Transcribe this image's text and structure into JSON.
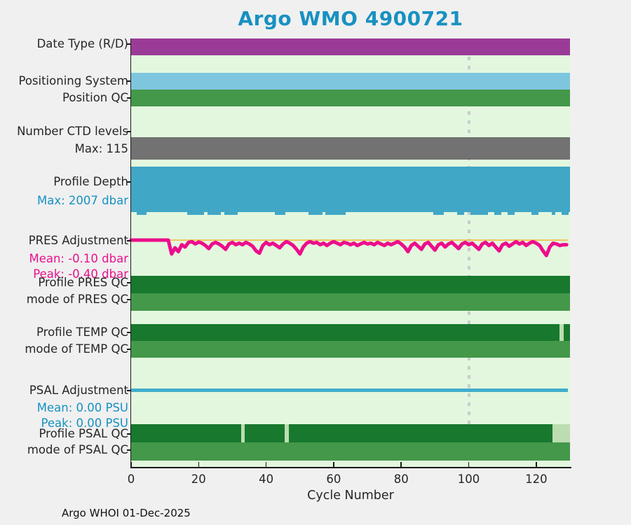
{
  "title": "Argo WMO 4900721",
  "footer": "Argo WHOI 01-Dec-2025",
  "colors": {
    "title_text": "#1791C1",
    "label_text": "#262626",
    "teal_text": "#1791C1",
    "magenta_text": "#E8118C",
    "figure_bg": "#F0F0F0",
    "plot_bg": "#E3F7DE",
    "purple": "#9B3B98",
    "lightblue": "#7EC6DE",
    "midgreen": "#44984A",
    "gray": "#717271",
    "depthblue": "#41A7C7",
    "darkgreen": "#17782E",
    "palegreen": "#BCDDB0",
    "yellow_line": "#EFC45E",
    "magenta_line": "#EC0D8C",
    "blue_line": "#41AECD",
    "dashed_line": "#CBCBCD",
    "axis": "#1A1A1A"
  },
  "left_labels": [
    {
      "id": "date-type",
      "text": "Date Type (R/D)",
      "color_key": "label_text"
    },
    {
      "id": "positioning-system",
      "text": "Positioning System",
      "color_key": "label_text"
    },
    {
      "id": "position-qc",
      "text": "Position QC",
      "color_key": "label_text"
    },
    {
      "id": "num-ctd-levels",
      "text": "Number CTD levels",
      "color_key": "label_text"
    },
    {
      "id": "num-ctd-max",
      "text": "Max: 115",
      "color_key": "label_text"
    },
    {
      "id": "profile-depth",
      "text": "Profile Depth",
      "color_key": "label_text"
    },
    {
      "id": "profile-depth-max",
      "text": "Max: 2007 dbar",
      "color_key": "teal_text"
    },
    {
      "id": "pres-adjustment",
      "text": "PRES Adjustment",
      "color_key": "label_text"
    },
    {
      "id": "pres-mean",
      "text": "Mean: -0.10 dbar",
      "color_key": "magenta_text"
    },
    {
      "id": "pres-peak",
      "text": "Peak: -0.40 dbar",
      "color_key": "magenta_text"
    },
    {
      "id": "profile-pres-qc",
      "text": "Profile PRES QC",
      "color_key": "label_text"
    },
    {
      "id": "mode-pres-qc",
      "text": "mode of PRES QC",
      "color_key": "label_text"
    },
    {
      "id": "profile-temp-qc",
      "text": "Profile TEMP QC",
      "color_key": "label_text"
    },
    {
      "id": "mode-temp-qc",
      "text": "mode of TEMP QC",
      "color_key": "label_text"
    },
    {
      "id": "psal-adjustment",
      "text": "PSAL Adjustment",
      "color_key": "label_text"
    },
    {
      "id": "psal-mean",
      "text": "Mean: 0.00 PSU",
      "color_key": "teal_text"
    },
    {
      "id": "psal-peak",
      "text": "Peak: 0.00 PSU",
      "color_key": "teal_text"
    },
    {
      "id": "profile-psal-qc",
      "text": "Profile PSAL QC",
      "color_key": "label_text"
    },
    {
      "id": "mode-psal-qc",
      "text": "mode of PSAL QC",
      "color_key": "label_text"
    }
  ],
  "chart_data": {
    "type": "status-band-timeseries",
    "title": "Argo WMO 4900721",
    "xlabel": "Cycle Number",
    "x_ticks": [
      0,
      20,
      40,
      60,
      80,
      100,
      120
    ],
    "x_range": [
      0,
      130
    ],
    "reference_dashed_line_x": 100,
    "grid": false,
    "band_rows": [
      {
        "id": "date-type",
        "label": "Date Type (R/D)",
        "segments": [
          [
            0,
            130,
            "purple"
          ]
        ]
      },
      {
        "id": "positioning-system",
        "label": "Positioning System",
        "segments": [
          [
            0,
            130,
            "lightblue"
          ]
        ]
      },
      {
        "id": "position-qc",
        "label": "Position QC",
        "segments": [
          [
            0,
            130,
            "midgreen"
          ]
        ]
      },
      {
        "id": "num-ctd-levels",
        "label": "Number CTD levels",
        "max_levels": 115,
        "segments": [
          [
            0,
            130,
            "gray"
          ]
        ]
      },
      {
        "id": "profile-depth",
        "label": "Profile Depth",
        "max_depth_dbar": 2007,
        "segments": [
          [
            0,
            130,
            "depthblue"
          ]
        ],
        "deeper_tick_cycles": [
          2,
          3,
          4,
          17,
          18,
          19,
          20,
          21,
          23,
          24,
          25,
          26,
          28,
          29,
          30,
          31,
          43,
          44,
          45,
          53,
          54,
          55,
          56,
          58,
          59,
          60,
          61,
          62,
          63,
          90,
          91,
          92,
          97,
          98,
          101,
          102,
          103,
          104,
          105,
          108,
          109,
          112,
          113,
          119,
          120,
          125,
          128,
          129
        ]
      },
      {
        "id": "profile-pres-qc",
        "label": "Profile PRES QC",
        "segments": [
          [
            0,
            130,
            "darkgreen"
          ]
        ]
      },
      {
        "id": "mode-pres-qc",
        "label": "mode of PRES QC",
        "segments": [
          [
            0,
            130,
            "midgreen"
          ]
        ]
      },
      {
        "id": "profile-temp-qc",
        "label": "Profile TEMP QC",
        "segments": [
          [
            0,
            126.9,
            "darkgreen"
          ],
          [
            126.9,
            128.1,
            "palegreen"
          ],
          [
            128.1,
            130,
            "darkgreen"
          ]
        ]
      },
      {
        "id": "mode-temp-qc",
        "label": "mode of TEMP QC",
        "segments": [
          [
            0,
            130,
            "midgreen"
          ]
        ]
      },
      {
        "id": "profile-psal-qc",
        "label": "Profile PSAL QC",
        "segments": [
          [
            0,
            32.6,
            "darkgreen"
          ],
          [
            32.6,
            33.6,
            "palegreen"
          ],
          [
            33.6,
            45.5,
            "darkgreen"
          ],
          [
            45.5,
            46.7,
            "palegreen"
          ],
          [
            46.7,
            124.8,
            "darkgreen"
          ],
          [
            124.8,
            130,
            "palegreen"
          ]
        ]
      },
      {
        "id": "mode-psal-qc",
        "label": "mode of PSAL QC",
        "segments": [
          [
            0,
            130,
            "midgreen"
          ]
        ]
      }
    ],
    "pres_adjustment": {
      "label": "PRES Adjustment",
      "units": "dbar",
      "mean": -0.1,
      "peak": -0.4,
      "zero_reference_line": true,
      "values_by_cycle": [
        0,
        0,
        0,
        0,
        0,
        0,
        0,
        0,
        0,
        0,
        0,
        0,
        -0.36,
        -0.2,
        -0.3,
        -0.12,
        -0.18,
        -0.06,
        -0.04,
        -0.1,
        -0.05,
        -0.08,
        -0.14,
        -0.22,
        -0.1,
        -0.06,
        -0.1,
        -0.16,
        -0.24,
        -0.1,
        -0.06,
        -0.12,
        -0.08,
        -0.12,
        -0.06,
        -0.1,
        -0.16,
        -0.28,
        -0.34,
        -0.14,
        -0.06,
        -0.12,
        -0.08,
        -0.14,
        -0.2,
        -0.1,
        -0.04,
        -0.08,
        -0.14,
        -0.24,
        -0.36,
        -0.18,
        -0.08,
        -0.04,
        -0.08,
        -0.06,
        -0.12,
        -0.08,
        -0.14,
        -0.08,
        -0.04,
        -0.08,
        -0.12,
        -0.06,
        -0.08,
        -0.12,
        -0.08,
        -0.14,
        -0.1,
        -0.06,
        -0.1,
        -0.08,
        -0.12,
        -0.06,
        -0.1,
        -0.14,
        -0.08,
        -0.12,
        -0.08,
        -0.04,
        -0.1,
        -0.18,
        -0.3,
        -0.14,
        -0.08,
        -0.16,
        -0.24,
        -0.1,
        -0.06,
        -0.16,
        -0.26,
        -0.12,
        -0.08,
        -0.18,
        -0.1,
        -0.06,
        -0.14,
        -0.22,
        -0.1,
        -0.06,
        -0.12,
        -0.08,
        -0.16,
        -0.24,
        -0.1,
        -0.06,
        -0.14,
        -0.08,
        -0.18,
        -0.28,
        -0.12,
        -0.08,
        -0.16,
        -0.1,
        -0.04,
        -0.1,
        -0.06,
        -0.14,
        -0.08,
        -0.04,
        -0.08,
        -0.14,
        -0.28,
        -0.4,
        -0.18,
        -0.08,
        -0.1,
        -0.14,
        -0.12,
        -0.12
      ]
    },
    "psal_adjustment": {
      "label": "PSAL Adjustment",
      "units": "PSU",
      "mean": 0.0,
      "peak": 0.0,
      "constant_value": 0.0
    }
  }
}
